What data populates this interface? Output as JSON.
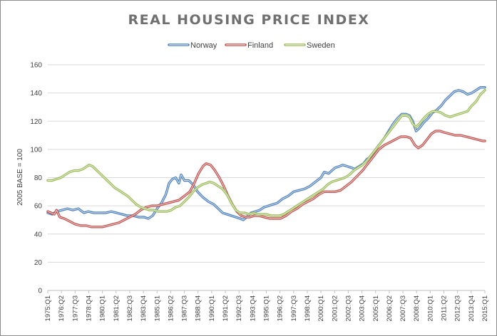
{
  "chart_data": {
    "type": "line",
    "title": "REAL HOUSING PRICE INDEX",
    "xlabel": "",
    "ylabel": "2005 BASE = 100",
    "ylim": [
      0,
      160
    ],
    "yticks": [
      0,
      20,
      40,
      60,
      80,
      100,
      120,
      140,
      160
    ],
    "grid": true,
    "legend_position": "top-center",
    "x_range": [
      1975.0,
      2015.0
    ],
    "x_tick_labels": [
      "1975:Q1",
      "1976:Q2",
      "1977:Q3",
      "1978:Q4",
      "1980:Q1",
      "1981:Q2",
      "1982:Q3",
      "1983:Q4",
      "1985:Q1",
      "1986:Q2",
      "1987:Q3",
      "1988:Q4",
      "1990:Q1",
      "1991:Q2",
      "1992:Q3",
      "1993:Q4",
      "1995:Q1",
      "1996:Q2",
      "1997:Q3",
      "1998:Q4",
      "2000:Q1",
      "2001:Q2",
      "2002:Q3",
      "2003:Q4",
      "2005:Q1",
      "2006:Q2",
      "2007:Q3",
      "2008:Q4",
      "2010:Q1",
      "2011:Q2",
      "2012:Q3",
      "2013:Q4",
      "2015:Q1"
    ],
    "series": [
      {
        "name": "Norway",
        "color": "#4f81bd",
        "points": [
          [
            1975.0,
            55
          ],
          [
            1975.4,
            54
          ],
          [
            1975.8,
            56
          ],
          [
            1976.3,
            57
          ],
          [
            1976.8,
            58
          ],
          [
            1977.3,
            57
          ],
          [
            1977.8,
            58
          ],
          [
            1978.3,
            55
          ],
          [
            1978.7,
            56
          ],
          [
            1979.2,
            55
          ],
          [
            1979.8,
            55
          ],
          [
            1980.3,
            55
          ],
          [
            1980.8,
            56
          ],
          [
            1981.3,
            55
          ],
          [
            1981.8,
            54
          ],
          [
            1982.3,
            53
          ],
          [
            1982.8,
            53
          ],
          [
            1983.3,
            52
          ],
          [
            1983.8,
            52
          ],
          [
            1984.2,
            51
          ],
          [
            1984.6,
            53
          ],
          [
            1985.0,
            58
          ],
          [
            1985.4,
            62
          ],
          [
            1985.8,
            68
          ],
          [
            1986.1,
            76
          ],
          [
            1986.4,
            79
          ],
          [
            1986.7,
            80
          ],
          [
            1987.0,
            76
          ],
          [
            1987.2,
            82
          ],
          [
            1987.5,
            78
          ],
          [
            1987.9,
            78
          ],
          [
            1988.3,
            75
          ],
          [
            1988.7,
            70
          ],
          [
            1989.2,
            66
          ],
          [
            1989.7,
            63
          ],
          [
            1990.2,
            61
          ],
          [
            1990.6,
            58
          ],
          [
            1991.0,
            55
          ],
          [
            1991.4,
            54
          ],
          [
            1991.8,
            53
          ],
          [
            1992.2,
            52
          ],
          [
            1992.6,
            51
          ],
          [
            1992.9,
            50
          ],
          [
            1993.2,
            52
          ],
          [
            1993.6,
            55
          ],
          [
            1994.0,
            56
          ],
          [
            1994.4,
            57
          ],
          [
            1994.8,
            59
          ],
          [
            1995.2,
            60
          ],
          [
            1995.6,
            61
          ],
          [
            1996.0,
            62
          ],
          [
            1996.5,
            65
          ],
          [
            1997.0,
            67
          ],
          [
            1997.5,
            70
          ],
          [
            1998.0,
            71
          ],
          [
            1998.5,
            72
          ],
          [
            1999.0,
            74
          ],
          [
            1999.5,
            77
          ],
          [
            2000.0,
            80
          ],
          [
            2000.3,
            84
          ],
          [
            2000.7,
            83
          ],
          [
            2001.0,
            85
          ],
          [
            2001.3,
            87
          ],
          [
            2001.7,
            88
          ],
          [
            2002.0,
            89
          ],
          [
            2002.4,
            88
          ],
          [
            2002.8,
            87
          ],
          [
            2003.1,
            86
          ],
          [
            2003.5,
            88
          ],
          [
            2003.9,
            90
          ],
          [
            2004.2,
            93
          ],
          [
            2004.6,
            95
          ],
          [
            2005.0,
            100
          ],
          [
            2005.4,
            104
          ],
          [
            2005.8,
            108
          ],
          [
            2006.2,
            113
          ],
          [
            2006.6,
            118
          ],
          [
            2007.0,
            122
          ],
          [
            2007.4,
            125
          ],
          [
            2007.8,
            125
          ],
          [
            2008.1,
            124
          ],
          [
            2008.4,
            120
          ],
          [
            2008.7,
            113
          ],
          [
            2009.0,
            115
          ],
          [
            2009.4,
            119
          ],
          [
            2009.8,
            122
          ],
          [
            2010.2,
            126
          ],
          [
            2010.6,
            128
          ],
          [
            2011.0,
            131
          ],
          [
            2011.4,
            135
          ],
          [
            2011.8,
            138
          ],
          [
            2012.2,
            141
          ],
          [
            2012.6,
            142
          ],
          [
            2013.0,
            141
          ],
          [
            2013.4,
            139
          ],
          [
            2013.8,
            140
          ],
          [
            2014.2,
            142
          ],
          [
            2014.6,
            144
          ],
          [
            2015.0,
            144
          ]
        ]
      },
      {
        "name": "Finland",
        "color": "#c0504d",
        "points": [
          [
            1975.0,
            56
          ],
          [
            1975.3,
            55
          ],
          [
            1975.6,
            54
          ],
          [
            1975.8,
            57
          ],
          [
            1976.1,
            52
          ],
          [
            1976.5,
            51
          ],
          [
            1977.0,
            49
          ],
          [
            1977.5,
            47
          ],
          [
            1978.0,
            46
          ],
          [
            1978.5,
            46
          ],
          [
            1979.0,
            45
          ],
          [
            1979.5,
            45
          ],
          [
            1980.0,
            45
          ],
          [
            1980.5,
            46
          ],
          [
            1981.0,
            47
          ],
          [
            1981.5,
            48
          ],
          [
            1982.0,
            50
          ],
          [
            1982.5,
            52
          ],
          [
            1983.0,
            54
          ],
          [
            1983.5,
            57
          ],
          [
            1984.0,
            59
          ],
          [
            1984.5,
            60
          ],
          [
            1985.0,
            60
          ],
          [
            1985.5,
            61
          ],
          [
            1986.0,
            62
          ],
          [
            1986.5,
            63
          ],
          [
            1987.0,
            64
          ],
          [
            1987.5,
            67
          ],
          [
            1988.0,
            70
          ],
          [
            1988.4,
            76
          ],
          [
            1988.8,
            83
          ],
          [
            1989.2,
            88
          ],
          [
            1989.5,
            90
          ],
          [
            1989.9,
            89
          ],
          [
            1990.3,
            85
          ],
          [
            1990.7,
            80
          ],
          [
            1991.1,
            74
          ],
          [
            1991.5,
            67
          ],
          [
            1991.9,
            61
          ],
          [
            1992.3,
            56
          ],
          [
            1992.7,
            53
          ],
          [
            1993.1,
            52
          ],
          [
            1993.5,
            52
          ],
          [
            1993.9,
            53
          ],
          [
            1994.3,
            53
          ],
          [
            1994.8,
            52
          ],
          [
            1995.3,
            51
          ],
          [
            1995.8,
            51
          ],
          [
            1996.3,
            51
          ],
          [
            1996.8,
            53
          ],
          [
            1997.3,
            56
          ],
          [
            1997.8,
            58
          ],
          [
            1998.3,
            61
          ],
          [
            1998.8,
            63
          ],
          [
            1999.3,
            65
          ],
          [
            1999.8,
            68
          ],
          [
            2000.3,
            70
          ],
          [
            2000.8,
            70
          ],
          [
            2001.3,
            70
          ],
          [
            2001.8,
            71
          ],
          [
            2002.3,
            74
          ],
          [
            2002.8,
            77
          ],
          [
            2003.3,
            81
          ],
          [
            2003.8,
            85
          ],
          [
            2004.3,
            90
          ],
          [
            2004.8,
            95
          ],
          [
            2005.3,
            100
          ],
          [
            2005.8,
            103
          ],
          [
            2006.3,
            105
          ],
          [
            2006.8,
            107
          ],
          [
            2007.3,
            109
          ],
          [
            2007.8,
            109
          ],
          [
            2008.2,
            108
          ],
          [
            2008.6,
            103
          ],
          [
            2008.9,
            101
          ],
          [
            2009.3,
            103
          ],
          [
            2009.7,
            107
          ],
          [
            2010.1,
            111
          ],
          [
            2010.5,
            113
          ],
          [
            2010.9,
            113
          ],
          [
            2011.3,
            112
          ],
          [
            2011.8,
            111
          ],
          [
            2012.3,
            110
          ],
          [
            2012.8,
            110
          ],
          [
            2013.3,
            109
          ],
          [
            2013.8,
            108
          ],
          [
            2014.3,
            107
          ],
          [
            2014.8,
            106
          ],
          [
            2015.0,
            106
          ]
        ]
      },
      {
        "name": "Sweden",
        "color": "#9bbb59",
        "points": [
          [
            1975.0,
            78
          ],
          [
            1975.4,
            78
          ],
          [
            1975.8,
            79
          ],
          [
            1976.2,
            80
          ],
          [
            1976.6,
            82
          ],
          [
            1977.0,
            84
          ],
          [
            1977.4,
            85
          ],
          [
            1977.8,
            85
          ],
          [
            1978.2,
            86
          ],
          [
            1978.6,
            88
          ],
          [
            1978.8,
            89
          ],
          [
            1979.1,
            88
          ],
          [
            1979.5,
            85
          ],
          [
            1979.9,
            82
          ],
          [
            1980.3,
            79
          ],
          [
            1980.7,
            76
          ],
          [
            1981.1,
            73
          ],
          [
            1981.5,
            71
          ],
          [
            1981.9,
            69
          ],
          [
            1982.3,
            67
          ],
          [
            1982.7,
            64
          ],
          [
            1983.1,
            61
          ],
          [
            1983.5,
            59
          ],
          [
            1983.9,
            58
          ],
          [
            1984.3,
            57
          ],
          [
            1984.7,
            57
          ],
          [
            1985.1,
            56
          ],
          [
            1985.5,
            56
          ],
          [
            1985.9,
            56
          ],
          [
            1986.3,
            57
          ],
          [
            1986.7,
            59
          ],
          [
            1987.1,
            60
          ],
          [
            1987.5,
            63
          ],
          [
            1987.9,
            66
          ],
          [
            1988.3,
            70
          ],
          [
            1988.7,
            73
          ],
          [
            1989.1,
            75
          ],
          [
            1989.5,
            76
          ],
          [
            1989.8,
            77
          ],
          [
            1990.2,
            76
          ],
          [
            1990.6,
            74
          ],
          [
            1991.0,
            72
          ],
          [
            1991.4,
            68
          ],
          [
            1991.8,
            62
          ],
          [
            1992.2,
            57
          ],
          [
            1992.6,
            55
          ],
          [
            1993.0,
            55
          ],
          [
            1993.4,
            54
          ],
          [
            1993.8,
            55
          ],
          [
            1994.2,
            54
          ],
          [
            1994.6,
            54
          ],
          [
            1995.0,
            54
          ],
          [
            1995.4,
            53
          ],
          [
            1995.8,
            53
          ],
          [
            1996.2,
            53
          ],
          [
            1996.6,
            54
          ],
          [
            1997.0,
            56
          ],
          [
            1997.4,
            58
          ],
          [
            1997.8,
            60
          ],
          [
            1998.2,
            62
          ],
          [
            1998.6,
            64
          ],
          [
            1999.0,
            66
          ],
          [
            1999.4,
            68
          ],
          [
            1999.8,
            70
          ],
          [
            2000.2,
            72
          ],
          [
            2000.6,
            75
          ],
          [
            2001.0,
            77
          ],
          [
            2001.4,
            78
          ],
          [
            2001.8,
            79
          ],
          [
            2002.2,
            80
          ],
          [
            2002.6,
            82
          ],
          [
            2003.0,
            85
          ],
          [
            2003.4,
            87
          ],
          [
            2003.8,
            89
          ],
          [
            2004.2,
            92
          ],
          [
            2004.6,
            96
          ],
          [
            2005.0,
            100
          ],
          [
            2005.4,
            104
          ],
          [
            2005.8,
            108
          ],
          [
            2006.2,
            112
          ],
          [
            2006.6,
            116
          ],
          [
            2007.0,
            120
          ],
          [
            2007.4,
            124
          ],
          [
            2007.8,
            124
          ],
          [
            2008.1,
            123
          ],
          [
            2008.4,
            118
          ],
          [
            2008.7,
            116
          ],
          [
            2009.0,
            118
          ],
          [
            2009.4,
            122
          ],
          [
            2009.8,
            125
          ],
          [
            2010.2,
            127
          ],
          [
            2010.6,
            127
          ],
          [
            2011.0,
            126
          ],
          [
            2011.4,
            124
          ],
          [
            2011.8,
            123
          ],
          [
            2012.2,
            124
          ],
          [
            2012.6,
            125
          ],
          [
            2013.0,
            126
          ],
          [
            2013.4,
            127
          ],
          [
            2013.8,
            131
          ],
          [
            2014.2,
            134
          ],
          [
            2014.6,
            139
          ],
          [
            2015.0,
            142
          ]
        ]
      }
    ]
  }
}
